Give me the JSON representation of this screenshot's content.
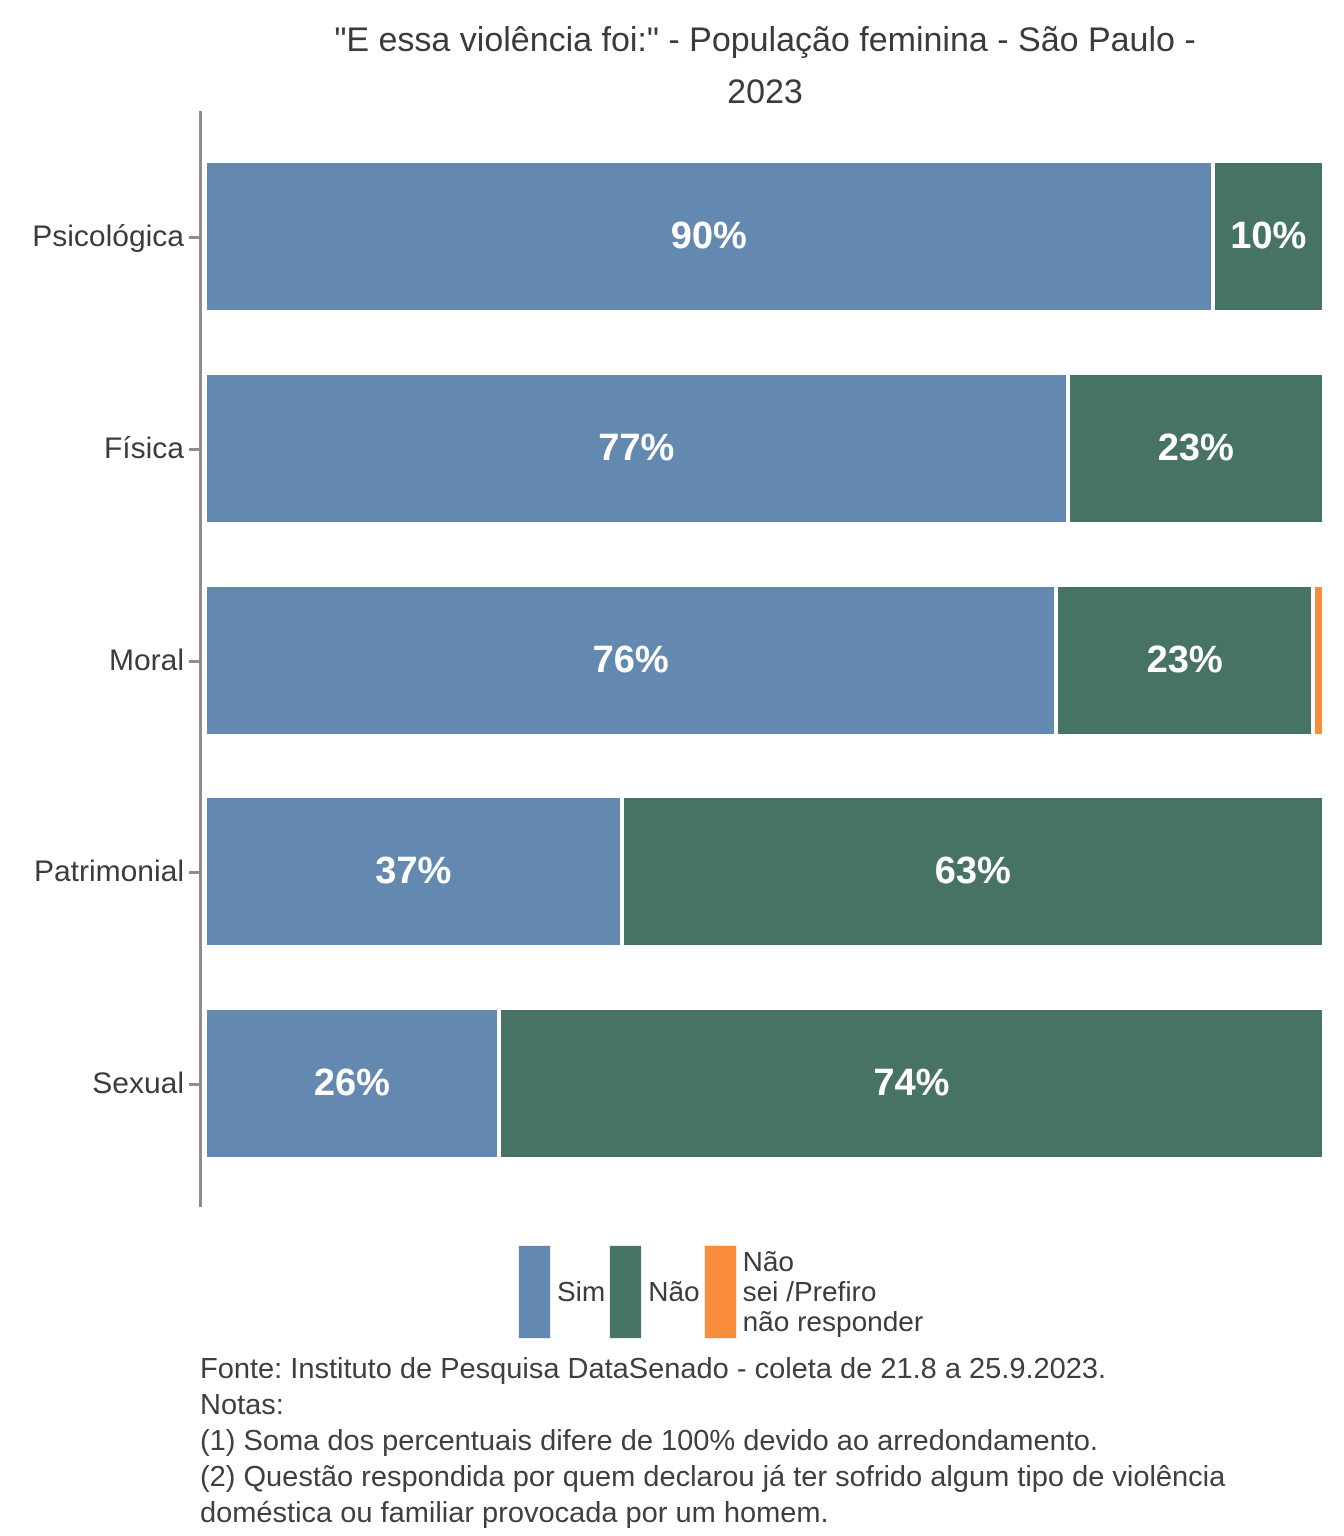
{
  "title": {
    "full": "\"E essa violência foi:\" - População feminina - São Paulo - 2023",
    "lines": [
      "\"E essa violência foi:\" - População feminina - São Paulo -",
      "2023"
    ]
  },
  "colors": {
    "sim": "#6389B1",
    "nao": "#477363",
    "nao_sei": "#FA8D3B",
    "axis": "#8C8C8C",
    "text": "#3B3B3B",
    "bar_label": "#FFFFFF"
  },
  "chart_data": {
    "type": "bar",
    "orientation": "horizontal",
    "stacked": true,
    "unit": "percent",
    "title": "\"E essa violência foi:\" - População feminina - São Paulo - 2023",
    "categories": [
      "Psicológica",
      "Física",
      "Moral",
      "Patrimonial",
      "Sexual"
    ],
    "series": [
      {
        "name": "Sim",
        "color": "#6389B1",
        "values": [
          90,
          77,
          76,
          37,
          26
        ]
      },
      {
        "name": "Não",
        "color": "#477363",
        "values": [
          10,
          23,
          23,
          63,
          74
        ]
      },
      {
        "name": "Não sei /Prefiro não responder",
        "color": "#FA8D3B",
        "values": [
          0,
          0,
          1,
          0,
          0
        ]
      }
    ],
    "xlim": [
      0,
      100
    ],
    "grid": false,
    "legend_position": "bottom",
    "rows": [
      {
        "category": "Psicológica",
        "segments": [
          {
            "series": "Sim",
            "value": 90,
            "label": "90%"
          },
          {
            "series": "Não",
            "value": 10,
            "label": "10%"
          }
        ]
      },
      {
        "category": "Física",
        "segments": [
          {
            "series": "Sim",
            "value": 77,
            "label": "77%"
          },
          {
            "series": "Não",
            "value": 23,
            "label": "23%"
          }
        ]
      },
      {
        "category": "Moral",
        "segments": [
          {
            "series": "Sim",
            "value": 76,
            "label": "76%"
          },
          {
            "series": "Não",
            "value": 23,
            "label": "23%"
          },
          {
            "series": "Não sei /Prefiro não responder",
            "value": 1,
            "label": ""
          }
        ]
      },
      {
        "category": "Patrimonial",
        "segments": [
          {
            "series": "Sim",
            "value": 37,
            "label": "37%"
          },
          {
            "series": "Não",
            "value": 63,
            "label": "63%"
          }
        ]
      },
      {
        "category": "Sexual",
        "segments": [
          {
            "series": "Sim",
            "value": 26,
            "label": "26%"
          },
          {
            "series": "Não",
            "value": 74,
            "label": "74%"
          }
        ]
      }
    ]
  },
  "legend": {
    "items": [
      {
        "label": "Sim",
        "display": "Sim",
        "color": "#6389B1"
      },
      {
        "label": "Não",
        "display": "Não",
        "color": "#477363"
      },
      {
        "label": "Não sei /Prefiro não responder",
        "display": "Não\nsei /Prefiro\nnão responder",
        "color": "#FA8D3B"
      }
    ]
  },
  "footer": {
    "lines": [
      "Fonte: Instituto de Pesquisa DataSenado - coleta de 21.8 a 25.9.2023.",
      "Notas:",
      "(1) Soma dos percentuais difere de 100% devido ao arredondamento.",
      "(2) Questão respondida por quem declarou já ter sofrido algum tipo de violência",
      "doméstica ou familiar provocada por um homem."
    ]
  }
}
